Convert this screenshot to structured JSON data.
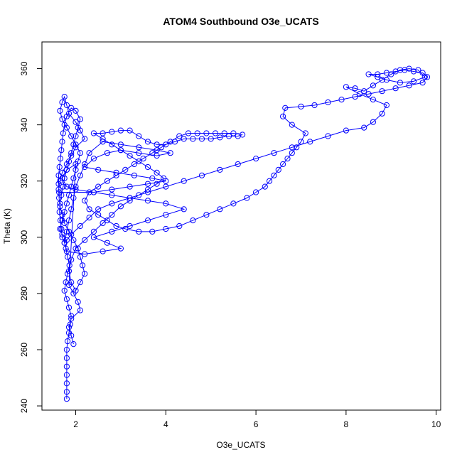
{
  "chart_data": {
    "type": "scatter",
    "title": "ATOM4 Southbound O3e_UCATS",
    "xlabel": "O3e_UCATS",
    "ylabel": "Theta (K)",
    "xlim": [
      1.25,
      10.1
    ],
    "ylim": [
      238.5,
      369.5
    ],
    "x_ticks": [
      "2",
      "4",
      "6",
      "8",
      "10"
    ],
    "y_ticks": [
      "240",
      "260",
      "280",
      "300",
      "320",
      "340",
      "360"
    ],
    "grid": false,
    "legend": "none",
    "color": "#0000ff",
    "marker": "open-circle",
    "connected": true,
    "series": [
      {
        "points": [
          [
            1.8,
            242.5
          ],
          [
            1.8,
            245
          ],
          [
            1.8,
            248
          ],
          [
            1.8,
            251
          ],
          [
            1.8,
            254
          ],
          [
            1.8,
            257
          ],
          [
            1.8,
            260
          ],
          [
            1.82,
            263
          ],
          [
            1.85,
            266
          ],
          [
            1.88,
            269
          ],
          [
            1.9,
            272
          ],
          [
            1.85,
            275
          ],
          [
            1.8,
            278
          ],
          [
            1.75,
            281
          ],
          [
            1.78,
            284
          ],
          [
            1.82,
            287
          ],
          [
            1.86,
            290
          ],
          [
            1.82,
            293
          ],
          [
            1.78,
            296
          ],
          [
            1.8,
            299
          ],
          [
            1.7,
            301
          ],
          [
            1.65,
            303
          ],
          [
            1.7,
            306
          ],
          [
            1.75,
            309
          ],
          [
            1.8,
            312
          ],
          [
            1.85,
            315
          ],
          [
            1.9,
            318
          ],
          [
            1.95,
            321
          ],
          [
            2.0,
            324
          ],
          [
            2.05,
            327
          ],
          [
            2.1,
            330
          ],
          [
            2.0,
            333
          ],
          [
            1.9,
            336
          ],
          [
            1.8,
            339
          ],
          [
            1.7,
            342
          ],
          [
            1.65,
            345
          ],
          [
            1.7,
            348
          ],
          [
            1.75,
            350
          ],
          [
            1.8,
            347
          ],
          [
            1.85,
            344
          ],
          [
            2.0,
            341
          ],
          [
            2.1,
            338
          ],
          [
            2.2,
            335
          ],
          [
            2.0,
            332
          ],
          [
            1.9,
            329
          ],
          [
            1.8,
            326
          ],
          [
            1.7,
            323
          ],
          [
            1.65,
            320
          ],
          [
            1.62,
            317
          ],
          [
            1.63,
            314
          ],
          [
            1.65,
            311
          ],
          [
            1.7,
            308
          ],
          [
            1.75,
            305
          ],
          [
            1.85,
            302
          ],
          [
            1.95,
            299
          ],
          [
            2.05,
            296
          ],
          [
            2.1,
            293
          ],
          [
            2.15,
            290
          ],
          [
            2.2,
            287
          ],
          [
            2.1,
            284
          ],
          [
            2.0,
            281
          ],
          [
            1.9,
            284
          ],
          [
            1.85,
            288
          ],
          [
            1.9,
            292
          ],
          [
            2.0,
            296
          ],
          [
            2.2,
            299
          ],
          [
            2.4,
            302
          ],
          [
            2.6,
            305
          ],
          [
            2.8,
            308
          ],
          [
            3.0,
            311
          ],
          [
            3.2,
            313
          ],
          [
            3.4,
            315
          ],
          [
            3.6,
            317
          ],
          [
            3.8,
            319
          ],
          [
            3.95,
            321
          ],
          [
            3.8,
            323
          ],
          [
            3.6,
            325
          ],
          [
            3.4,
            327
          ],
          [
            3.2,
            329
          ],
          [
            3.0,
            331
          ],
          [
            2.8,
            333
          ],
          [
            2.6,
            335
          ],
          [
            2.4,
            337
          ],
          [
            2.6,
            337
          ],
          [
            2.8,
            337.5
          ],
          [
            3.0,
            338
          ],
          [
            3.2,
            338
          ],
          [
            3.4,
            336
          ],
          [
            3.6,
            334
          ],
          [
            3.8,
            333
          ],
          [
            4.0,
            333
          ],
          [
            4.2,
            334
          ],
          [
            4.4,
            335
          ],
          [
            4.6,
            335
          ],
          [
            4.8,
            335
          ],
          [
            5.0,
            335
          ],
          [
            5.2,
            335.5
          ],
          [
            5.4,
            336
          ],
          [
            5.6,
            336
          ],
          [
            5.7,
            336.5
          ],
          [
            5.5,
            337
          ],
          [
            5.3,
            337
          ],
          [
            5.1,
            337
          ],
          [
            4.9,
            337
          ],
          [
            4.7,
            337
          ],
          [
            4.5,
            337
          ],
          [
            4.3,
            336
          ],
          [
            4.1,
            334
          ],
          [
            3.9,
            332
          ],
          [
            3.7,
            330
          ],
          [
            3.5,
            328
          ],
          [
            3.3,
            326
          ],
          [
            3.1,
            324
          ],
          [
            2.9,
            322
          ],
          [
            2.7,
            320
          ],
          [
            2.5,
            318
          ],
          [
            2.3,
            316
          ],
          [
            2.2,
            313
          ],
          [
            2.3,
            310
          ],
          [
            2.5,
            308
          ],
          [
            2.7,
            306
          ],
          [
            2.9,
            304
          ],
          [
            3.1,
            303
          ],
          [
            3.4,
            302
          ],
          [
            3.7,
            302
          ],
          [
            4.0,
            303
          ],
          [
            4.3,
            304
          ],
          [
            4.6,
            306
          ],
          [
            4.9,
            308
          ],
          [
            5.2,
            310
          ],
          [
            5.5,
            312
          ],
          [
            5.8,
            314
          ],
          [
            6.0,
            316
          ],
          [
            6.2,
            318
          ],
          [
            6.3,
            320
          ],
          [
            6.4,
            322
          ],
          [
            6.5,
            324
          ],
          [
            6.6,
            326
          ],
          [
            6.7,
            328
          ],
          [
            6.8,
            330
          ],
          [
            6.9,
            332
          ],
          [
            7.0,
            334
          ],
          [
            7.1,
            337
          ],
          [
            6.8,
            340
          ],
          [
            6.6,
            343
          ],
          [
            6.65,
            346
          ],
          [
            7.0,
            346.5
          ],
          [
            7.3,
            347
          ],
          [
            7.6,
            348
          ],
          [
            7.9,
            349
          ],
          [
            8.2,
            350
          ],
          [
            8.5,
            351
          ],
          [
            8.8,
            352
          ],
          [
            9.1,
            353
          ],
          [
            9.4,
            354
          ],
          [
            9.7,
            355
          ],
          [
            9.8,
            357
          ],
          [
            9.7,
            358.5
          ],
          [
            9.5,
            359
          ],
          [
            9.3,
            359.5
          ],
          [
            9.1,
            359
          ],
          [
            8.9,
            358.5
          ],
          [
            8.7,
            358
          ],
          [
            8.5,
            358
          ],
          [
            8.7,
            357
          ],
          [
            8.9,
            356
          ],
          [
            9.2,
            355
          ],
          [
            9.5,
            355.5
          ],
          [
            9.75,
            357
          ],
          [
            9.6,
            359.5
          ],
          [
            9.4,
            360
          ],
          [
            9.2,
            359.5
          ],
          [
            9.0,
            358
          ],
          [
            8.8,
            356
          ],
          [
            8.6,
            354
          ],
          [
            8.4,
            352
          ],
          [
            8.2,
            353
          ],
          [
            8.0,
            353.5
          ],
          [
            8.3,
            351
          ],
          [
            8.6,
            349
          ],
          [
            8.9,
            347
          ],
          [
            8.8,
            344
          ],
          [
            8.6,
            341
          ],
          [
            8.4,
            339
          ],
          [
            8.0,
            338
          ],
          [
            7.6,
            336
          ],
          [
            7.2,
            334
          ],
          [
            6.8,
            332
          ],
          [
            6.4,
            330
          ],
          [
            6.0,
            328
          ],
          [
            5.6,
            326
          ],
          [
            5.2,
            324
          ],
          [
            4.8,
            322
          ],
          [
            4.4,
            320
          ],
          [
            4.0,
            318
          ],
          [
            3.6,
            316
          ],
          [
            3.2,
            314
          ],
          [
            2.8,
            312
          ],
          [
            2.5,
            310
          ],
          [
            2.3,
            307
          ],
          [
            2.1,
            304
          ],
          [
            1.9,
            301
          ],
          [
            1.75,
            298
          ],
          [
            1.7,
            300
          ],
          [
            1.68,
            303
          ],
          [
            1.66,
            306
          ],
          [
            1.64,
            309
          ],
          [
            1.65,
            312
          ],
          [
            1.68,
            315
          ],
          [
            1.72,
            318
          ],
          [
            1.75,
            321
          ],
          [
            1.8,
            324
          ],
          [
            1.85,
            327
          ],
          [
            1.9,
            330
          ],
          [
            1.95,
            333
          ],
          [
            2.0,
            336
          ],
          [
            2.05,
            339
          ],
          [
            2.1,
            342
          ],
          [
            2.0,
            345
          ],
          [
            1.9,
            346
          ],
          [
            1.8,
            343
          ],
          [
            1.75,
            340
          ],
          [
            1.72,
            337
          ],
          [
            1.7,
            334
          ],
          [
            1.68,
            331
          ],
          [
            1.66,
            328
          ],
          [
            1.64,
            325
          ],
          [
            1.62,
            322
          ],
          [
            1.62,
            319
          ],
          [
            1.63,
            316
          ],
          [
            2.4,
            316
          ],
          [
            2.8,
            317
          ],
          [
            3.2,
            318
          ],
          [
            3.6,
            319
          ],
          [
            4.0,
            320
          ],
          [
            3.7,
            321
          ],
          [
            3.3,
            322
          ],
          [
            2.9,
            323
          ],
          [
            2.5,
            324
          ],
          [
            2.2,
            325
          ],
          [
            2.4,
            328
          ],
          [
            2.7,
            330
          ],
          [
            3.0,
            331
          ],
          [
            3.4,
            330
          ],
          [
            3.8,
            329
          ],
          [
            4.1,
            330
          ],
          [
            3.8,
            331
          ],
          [
            3.4,
            332
          ],
          [
            3.0,
            333
          ],
          [
            2.6,
            334
          ],
          [
            2.3,
            330
          ],
          [
            2.2,
            326
          ],
          [
            2.1,
            322
          ],
          [
            2.0,
            318
          ],
          [
            1.95,
            314
          ],
          [
            1.9,
            310
          ],
          [
            1.85,
            306
          ],
          [
            1.8,
            302
          ],
          [
            1.75,
            298
          ],
          [
            1.8,
            295
          ],
          [
            2.2,
            294
          ],
          [
            2.6,
            295
          ],
          [
            3.0,
            296
          ],
          [
            2.7,
            298
          ],
          [
            2.4,
            300
          ],
          [
            2.8,
            302
          ],
          [
            3.2,
            304
          ],
          [
            3.6,
            306
          ],
          [
            4.0,
            308
          ],
          [
            4.4,
            310
          ],
          [
            4.0,
            312
          ],
          [
            3.6,
            313
          ],
          [
            3.2,
            314
          ],
          [
            2.8,
            315
          ],
          [
            2.4,
            316
          ],
          [
            2.0,
            317
          ],
          [
            1.8,
            318
          ],
          [
            1.7,
            321
          ],
          [
            1.8,
            324
          ],
          [
            2.0,
            326
          ],
          [
            1.85,
            283
          ],
          [
            1.95,
            280
          ],
          [
            2.05,
            277
          ],
          [
            2.1,
            274
          ],
          [
            1.9,
            271
          ],
          [
            1.85,
            268
          ],
          [
            1.9,
            265
          ],
          [
            1.95,
            262
          ]
        ]
      }
    ]
  }
}
